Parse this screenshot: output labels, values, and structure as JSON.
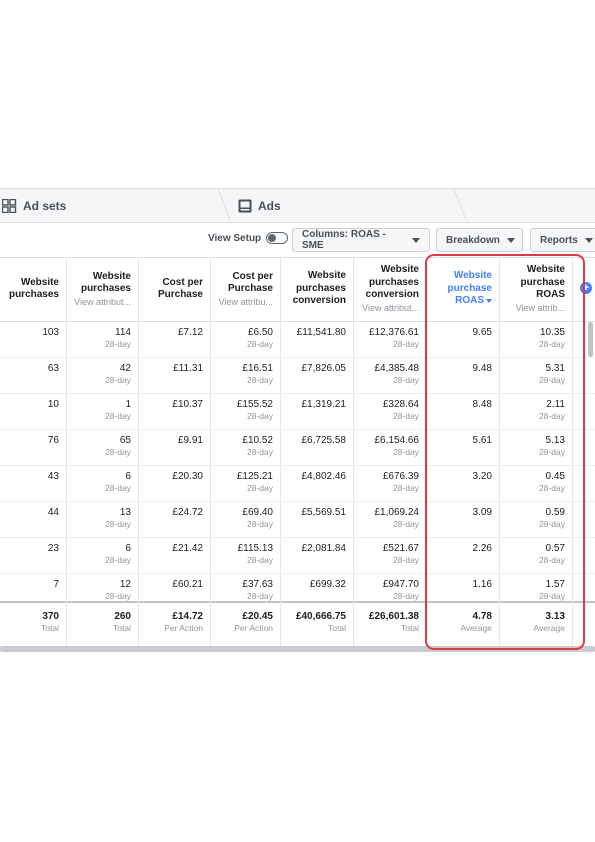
{
  "tabs": {
    "adsets": "Ad sets",
    "ads": "Ads"
  },
  "toolbar": {
    "view_setup": "View Setup",
    "columns": "Columns: ROAS - SME",
    "breakdown": "Breakdown",
    "reports": "Reports"
  },
  "headers": [
    {
      "title": "Website purchases",
      "sub": ""
    },
    {
      "title": "Website purchases",
      "sub": "View attribut..."
    },
    {
      "title": "Cost per Purchase",
      "sub": ""
    },
    {
      "title": "Cost per Purchase",
      "sub": "View attribu..."
    },
    {
      "title": "Website purchases conversion",
      "sub": ""
    },
    {
      "title": "Website purchases conversion",
      "sub": "View attribut..."
    },
    {
      "title": "Website purchase ROAS",
      "sub": ""
    },
    {
      "title": "Website purchase ROAS",
      "sub": "View attrib..."
    }
  ],
  "rows": [
    {
      "cells": [
        {
          "v": "103",
          "s": ""
        },
        {
          "v": "114",
          "s": "28-day"
        },
        {
          "v": "£7.12",
          "s": ""
        },
        {
          "v": "£6.50",
          "s": "28-day"
        },
        {
          "v": "£11,541.80",
          "s": ""
        },
        {
          "v": "£12,376.61",
          "s": "28-day"
        },
        {
          "v": "9.65",
          "s": ""
        },
        {
          "v": "10.35",
          "s": "28-day"
        }
      ]
    },
    {
      "cells": [
        {
          "v": "63",
          "s": ""
        },
        {
          "v": "42",
          "s": "28-day"
        },
        {
          "v": "£11.31",
          "s": ""
        },
        {
          "v": "£16.51",
          "s": "28-day"
        },
        {
          "v": "£7,826.05",
          "s": ""
        },
        {
          "v": "£4,385.48",
          "s": "28-day"
        },
        {
          "v": "9.48",
          "s": ""
        },
        {
          "v": "5.31",
          "s": "28-day"
        }
      ]
    },
    {
      "cells": [
        {
          "v": "10",
          "s": ""
        },
        {
          "v": "1",
          "s": "28-day"
        },
        {
          "v": "£10.37",
          "s": ""
        },
        {
          "v": "£155.52",
          "s": "28-day"
        },
        {
          "v": "£1,319.21",
          "s": ""
        },
        {
          "v": "£328.64",
          "s": "28-day"
        },
        {
          "v": "8.48",
          "s": ""
        },
        {
          "v": "2.11",
          "s": "28-day"
        }
      ]
    },
    {
      "cells": [
        {
          "v": "76",
          "s": ""
        },
        {
          "v": "65",
          "s": "28-day"
        },
        {
          "v": "£9.91",
          "s": ""
        },
        {
          "v": "£10.52",
          "s": "28-day"
        },
        {
          "v": "£6,725.58",
          "s": ""
        },
        {
          "v": "£6,154.66",
          "s": "28-day"
        },
        {
          "v": "5.61",
          "s": ""
        },
        {
          "v": "5.13",
          "s": "28-day"
        }
      ]
    },
    {
      "cells": [
        {
          "v": "43",
          "s": ""
        },
        {
          "v": "6",
          "s": "28-day"
        },
        {
          "v": "£20.30",
          "s": ""
        },
        {
          "v": "£125.21",
          "s": "28-day"
        },
        {
          "v": "£4,802.46",
          "s": ""
        },
        {
          "v": "£676.39",
          "s": "28-day"
        },
        {
          "v": "3.20",
          "s": ""
        },
        {
          "v": "0.45",
          "s": "28-day"
        }
      ]
    },
    {
      "cells": [
        {
          "v": "44",
          "s": ""
        },
        {
          "v": "13",
          "s": "28-day"
        },
        {
          "v": "£24.72",
          "s": ""
        },
        {
          "v": "£69.40",
          "s": "28-day"
        },
        {
          "v": "£5,569.51",
          "s": ""
        },
        {
          "v": "£1,069.24",
          "s": "28-day"
        },
        {
          "v": "3.09",
          "s": ""
        },
        {
          "v": "0.59",
          "s": "28-day"
        }
      ]
    },
    {
      "cells": [
        {
          "v": "23",
          "s": ""
        },
        {
          "v": "6",
          "s": "28-day"
        },
        {
          "v": "£21.42",
          "s": ""
        },
        {
          "v": "£115.13",
          "s": "28-day"
        },
        {
          "v": "£2,081.84",
          "s": ""
        },
        {
          "v": "£521.67",
          "s": "28-day"
        },
        {
          "v": "2.26",
          "s": ""
        },
        {
          "v": "0.57",
          "s": "28-day"
        }
      ]
    },
    {
      "cells": [
        {
          "v": "7",
          "s": ""
        },
        {
          "v": "12",
          "s": "28-day"
        },
        {
          "v": "£60.21",
          "s": ""
        },
        {
          "v": "£37.63",
          "s": "28-day"
        },
        {
          "v": "£699.32",
          "s": ""
        },
        {
          "v": "£947.70",
          "s": "28-day"
        },
        {
          "v": "1.16",
          "s": ""
        },
        {
          "v": "1.57",
          "s": "28-day"
        }
      ]
    }
  ],
  "totals": [
    {
      "v": "370",
      "s": "Total"
    },
    {
      "v": "260",
      "s": "Total"
    },
    {
      "v": "£14.72",
      "s": "Per Action"
    },
    {
      "v": "£20.45",
      "s": "Per Action"
    },
    {
      "v": "£40,666.75",
      "s": "Total"
    },
    {
      "v": "£26,601.38",
      "s": "Total"
    },
    {
      "v": "4.78",
      "s": "Average"
    },
    {
      "v": "3.13",
      "s": "Average"
    }
  ],
  "colors": {
    "highlight": "#e0393e",
    "accent": "#4080ff"
  },
  "icons": {
    "adsets": "grid-icon",
    "ads": "ad-preview-icon",
    "add": "plus-circle-icon"
  }
}
